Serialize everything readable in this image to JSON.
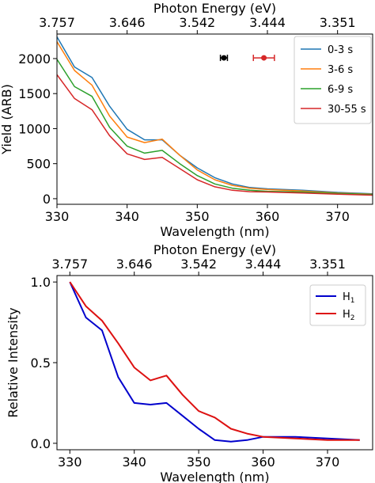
{
  "chart_data": [
    {
      "type": "line",
      "xlabel": "Wavelength (nm)",
      "ylabel": "Yield (ARB)",
      "top_xlabel": "Photon Energy (eV)",
      "top_ticks": [
        {
          "x": 330,
          "label": "3.757"
        },
        {
          "x": 340,
          "label": "3.646"
        },
        {
          "x": 350,
          "label": "3.542"
        },
        {
          "x": 360,
          "label": "3.444"
        },
        {
          "x": 370,
          "label": "3.351"
        }
      ],
      "xlim": [
        330,
        375
      ],
      "ylim": [
        -80,
        2350
      ],
      "xticks": [
        330,
        340,
        350,
        360,
        370
      ],
      "yticks": [
        0,
        500,
        1000,
        1500,
        2000
      ],
      "legend_position": "top-right",
      "x": [
        330,
        332.5,
        335,
        337.5,
        340,
        342.5,
        345,
        347.5,
        350,
        352.5,
        355,
        357.5,
        360,
        365,
        370,
        375
      ],
      "series": [
        {
          "name": "0-3 s",
          "color": "#1f77b4",
          "values": [
            2310,
            1880,
            1730,
            1320,
            990,
            840,
            840,
            620,
            440,
            300,
            210,
            160,
            140,
            120,
            90,
            70
          ]
        },
        {
          "name": "3-6 s",
          "color": "#ff7f0e",
          "values": [
            2240,
            1830,
            1620,
            1180,
            880,
            800,
            850,
            620,
            410,
            270,
            190,
            150,
            130,
            110,
            80,
            65
          ]
        },
        {
          "name": "6-9 s",
          "color": "#2ca02c",
          "values": [
            1990,
            1600,
            1460,
            1020,
            750,
            650,
            690,
            500,
            330,
            210,
            150,
            120,
            105,
            95,
            75,
            60
          ]
        },
        {
          "name": "30-55 s",
          "color": "#d62728",
          "values": [
            1770,
            1430,
            1270,
            900,
            640,
            560,
            590,
            430,
            270,
            170,
            120,
            100,
            95,
            80,
            65,
            50
          ]
        }
      ],
      "markers": [
        {
          "x": 353.8,
          "y": 2010,
          "xerr": 0.5,
          "color": "#000000"
        },
        {
          "x": 359.5,
          "y": 2010,
          "xerr": 1.5,
          "color": "#d62728"
        }
      ]
    },
    {
      "type": "line",
      "xlabel": "Wavelength (nm)",
      "ylabel": "Relative Intensity",
      "top_xlabel": "Photon Energy (eV)",
      "top_ticks": [
        {
          "x": 330,
          "label": "3.757"
        },
        {
          "x": 340,
          "label": "3.646"
        },
        {
          "x": 350,
          "label": "3.542"
        },
        {
          "x": 360,
          "label": "3.444"
        },
        {
          "x": 370,
          "label": "3.351"
        }
      ],
      "xlim": [
        328,
        377
      ],
      "ylim": [
        -0.04,
        1.04
      ],
      "xticks": [
        330,
        340,
        350,
        360,
        370
      ],
      "yticks": [
        0.0,
        0.5,
        1.0
      ],
      "ytick_labels": [
        "0.0",
        "0.5",
        "1.0"
      ],
      "legend_position": "top-right",
      "x": [
        330,
        332.5,
        335,
        337.5,
        340,
        342.5,
        345,
        347.5,
        350,
        352.5,
        355,
        357.5,
        360,
        365,
        370,
        375
      ],
      "series": [
        {
          "name": "H",
          "subscript": "1",
          "color": "#0000cc",
          "values": [
            1.0,
            0.78,
            0.7,
            0.41,
            0.25,
            0.24,
            0.25,
            0.17,
            0.09,
            0.02,
            0.01,
            0.02,
            0.04,
            0.04,
            0.03,
            0.02
          ]
        },
        {
          "name": "H",
          "subscript": "2",
          "color": "#dd1111",
          "values": [
            1.0,
            0.85,
            0.76,
            0.62,
            0.47,
            0.39,
            0.42,
            0.3,
            0.2,
            0.16,
            0.09,
            0.06,
            0.04,
            0.03,
            0.02,
            0.02
          ]
        }
      ]
    }
  ]
}
